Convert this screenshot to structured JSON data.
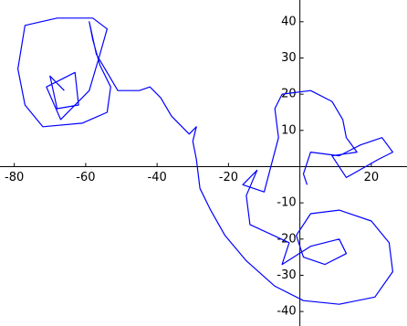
{
  "chart_data": {
    "type": "line",
    "series": [
      {
        "color": "#0000ff",
        "x": [
          -66,
          -70,
          -68,
          -62,
          -63,
          -71,
          -67,
          -59,
          -56,
          -54,
          -58,
          -68,
          -77,
          -79,
          -77,
          -72,
          -61,
          -54,
          -53,
          -56,
          -58,
          -59,
          -57,
          -54,
          -51,
          -45,
          -42,
          -39,
          -36,
          -34,
          -31,
          -29,
          -30,
          -29,
          -28,
          -25,
          -21,
          -15,
          -7,
          1,
          11,
          21,
          26,
          25,
          20,
          11,
          3,
          -1,
          1,
          7,
          13,
          11,
          3,
          -5,
          -3,
          -14,
          -15,
          -12,
          -16,
          -10,
          -6,
          -7,
          -5,
          3,
          9,
          12,
          13,
          16,
          9,
          13,
          22,
          26,
          23,
          17,
          11,
          3,
          1,
          2
        ],
        "values": [
          21,
          25,
          16,
          17,
          26,
          22,
          13,
          21,
          31,
          38,
          41,
          41,
          39,
          27,
          17,
          11,
          12,
          15,
          22,
          28,
          35,
          40,
          31,
          26,
          21,
          21,
          22,
          19,
          14,
          12,
          9,
          11,
          7,
          2,
          -6,
          -12,
          -19,
          -26,
          -33,
          -37,
          -38,
          -36,
          -29,
          -21,
          -15,
          -12,
          -13,
          -19,
          -25,
          -27,
          -24,
          -20,
          -22,
          -27,
          -21,
          -16,
          -8,
          -1,
          -5,
          -7,
          8,
          16,
          20,
          21,
          18,
          13,
          8,
          4,
          3,
          -3,
          2,
          4,
          8,
          6,
          3,
          4,
          -2,
          -5
        ]
      }
    ],
    "xlim": [
      -84,
      30
    ],
    "ylim": [
      -44,
      46
    ],
    "xticks": [
      -80,
      -60,
      -40,
      -20,
      20
    ],
    "yticks": [
      -40,
      -30,
      -20,
      -10,
      10,
      20,
      30,
      40
    ]
  }
}
